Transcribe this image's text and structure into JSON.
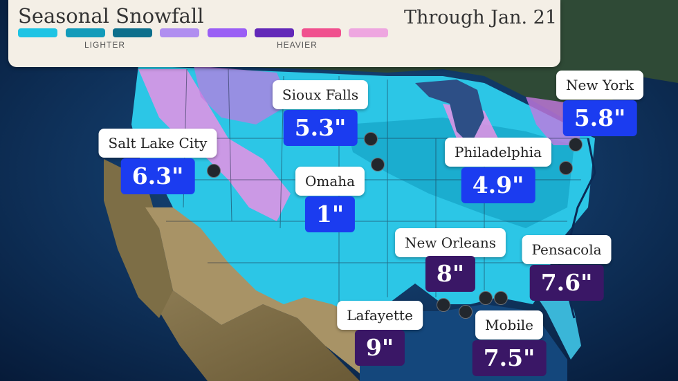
{
  "legend": {
    "title": "Seasonal Snowfall",
    "date": "Through Jan. 21",
    "lighter_label": "LIGHTER",
    "heavier_label": "HEAVIER",
    "swatches": [
      "#1ec4e4",
      "#129bba",
      "#0d6f8c",
      "#b08ef0",
      "#9a5ef5",
      "#6228b8",
      "#f0508e",
      "#eea6e0"
    ]
  },
  "colors": {
    "ocean": "#0b3566",
    "snow_light": "#2cc6e6",
    "snow_pink": "#e890e4",
    "label_blue": "#1b3cf0",
    "label_purple": "#3a1766"
  },
  "cities": [
    {
      "name": "Sioux Falls",
      "amount": "5.3\"",
      "color": "blue"
    },
    {
      "name": "Salt Lake City",
      "amount": "6.3\"",
      "color": "blue"
    },
    {
      "name": "Omaha",
      "amount": "1\"",
      "color": "blue"
    },
    {
      "name": "New York",
      "amount": "5.8\"",
      "color": "blue"
    },
    {
      "name": "Philadelphia",
      "amount": "4.9\"",
      "color": "blue"
    },
    {
      "name": "New Orleans",
      "amount": "8\"",
      "color": "purple"
    },
    {
      "name": "Pensacola",
      "amount": "7.6\"",
      "color": "purple"
    },
    {
      "name": "Lafayette",
      "amount": "9\"",
      "color": "purple"
    },
    {
      "name": "Mobile",
      "amount": "7.5\"",
      "color": "purple"
    }
  ]
}
